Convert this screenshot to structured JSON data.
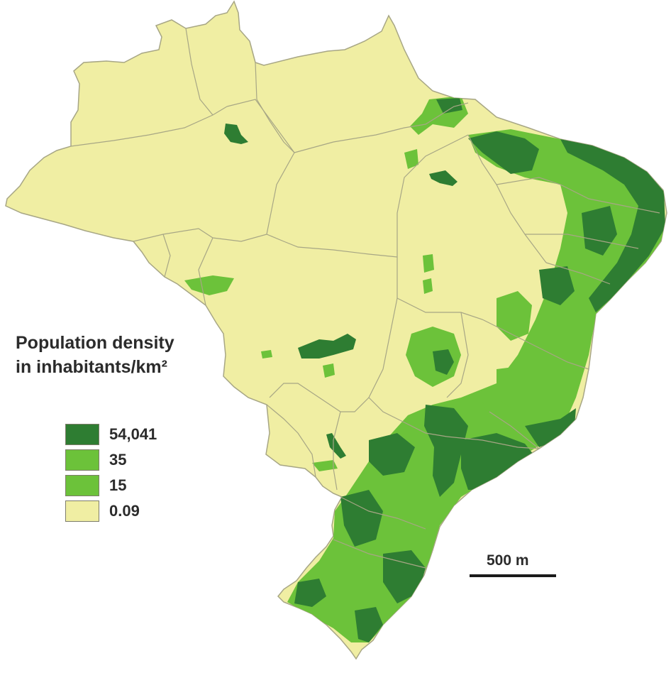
{
  "legend": {
    "title_line1": "Population density",
    "title_line2": "in inhabitants/km²",
    "items": [
      {
        "label": "54,041",
        "color": "#2e7d32"
      },
      {
        "label": "35",
        "color": "#6cc23a"
      },
      {
        "label": "15",
        "color": "#6cc23a"
      },
      {
        "label": "0.09",
        "color": "#f0eea3"
      }
    ]
  },
  "scale": {
    "label": "500 m"
  },
  "colors": {
    "land": "#f0eea3",
    "border": "#a7a685",
    "high_density": "#2e7d32",
    "medium_density": "#6cc23a",
    "background": "#ffffff"
  }
}
